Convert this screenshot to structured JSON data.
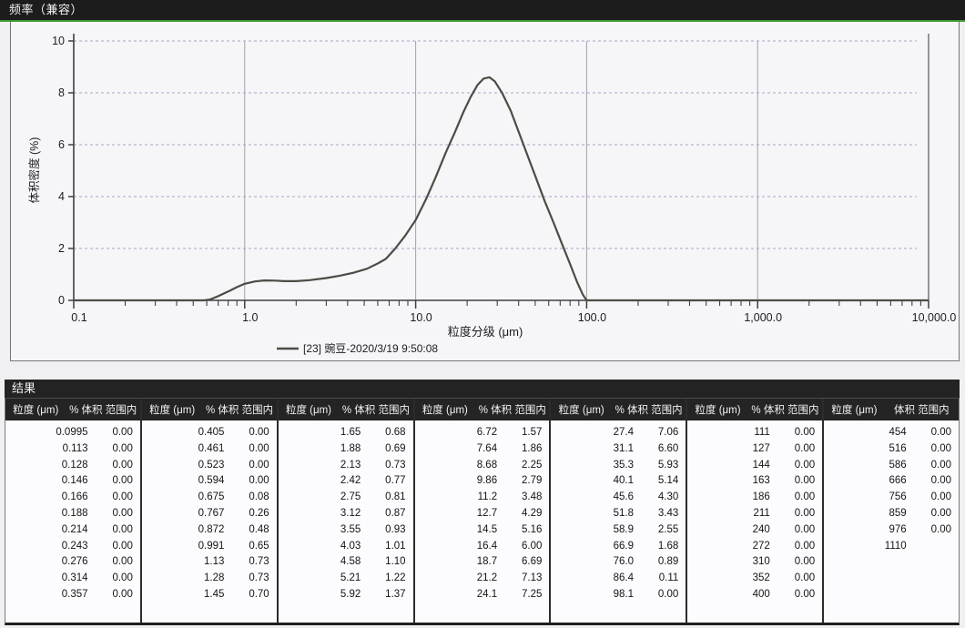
{
  "chart": {
    "title": "频率（兼容）"
  },
  "chart_data": {
    "type": "line",
    "title": "频率（兼容）",
    "xlabel": "粒度分级 (μm)",
    "ylabel": "体积密度 (%)",
    "x_scale": "log",
    "xlim": [
      0.1,
      10000
    ],
    "ylim": [
      0,
      10
    ],
    "x_ticks": [
      0.1,
      1,
      10,
      100,
      1000,
      10000
    ],
    "x_tick_labels": [
      "0.1",
      "1.0",
      "10.0",
      "100.0",
      "1,000.0",
      "10,000.0"
    ],
    "y_ticks": [
      0,
      2,
      4,
      6,
      8,
      10
    ],
    "grid": "on",
    "legend_position": "bottom-center",
    "series": [
      {
        "name": "[23] 豌豆-2020/3/19 9:50:08",
        "points": [
          [
            0.1,
            0
          ],
          [
            0.2,
            0
          ],
          [
            0.3,
            0
          ],
          [
            0.4,
            0
          ],
          [
            0.5,
            0
          ],
          [
            0.58,
            0
          ],
          [
            0.63,
            0.04
          ],
          [
            0.7,
            0.16
          ],
          [
            0.8,
            0.34
          ],
          [
            0.9,
            0.51
          ],
          [
            1.0,
            0.64
          ],
          [
            1.15,
            0.73
          ],
          [
            1.3,
            0.77
          ],
          [
            1.5,
            0.76
          ],
          [
            1.7,
            0.74
          ],
          [
            2.0,
            0.74
          ],
          [
            2.4,
            0.78
          ],
          [
            3.0,
            0.86
          ],
          [
            3.6,
            0.95
          ],
          [
            4.3,
            1.06
          ],
          [
            5.2,
            1.22
          ],
          [
            6.0,
            1.42
          ],
          [
            6.7,
            1.6
          ],
          [
            7.6,
            2.0
          ],
          [
            8.7,
            2.5
          ],
          [
            10.0,
            3.1
          ],
          [
            11.5,
            3.9
          ],
          [
            13,
            4.7
          ],
          [
            15,
            5.7
          ],
          [
            17,
            6.5
          ],
          [
            19,
            7.25
          ],
          [
            21,
            7.85
          ],
          [
            23,
            8.3
          ],
          [
            25,
            8.55
          ],
          [
            27,
            8.6
          ],
          [
            29,
            8.45
          ],
          [
            32,
            8.0
          ],
          [
            36,
            7.3
          ],
          [
            40,
            6.5
          ],
          [
            45,
            5.6
          ],
          [
            50,
            4.8
          ],
          [
            57,
            3.8
          ],
          [
            64,
            3.0
          ],
          [
            72,
            2.15
          ],
          [
            80,
            1.4
          ],
          [
            88,
            0.7
          ],
          [
            95,
            0.22
          ],
          [
            99,
            0.04
          ],
          [
            101,
            0
          ],
          [
            150,
            0
          ],
          [
            300,
            0
          ],
          [
            1000,
            0
          ],
          [
            3000,
            0
          ],
          [
            10000,
            0
          ]
        ]
      }
    ]
  },
  "results": {
    "title": "结果",
    "group_headers": [
      {
        "size": "粒度 (μm)",
        "pct": "% 体积 范围内"
      },
      {
        "size": "粒度 (μm)",
        "pct": "% 体积 范围内"
      },
      {
        "size": "粒度 (μm)",
        "pct": "% 体积 范围内"
      },
      {
        "size": "粒度 (μm)",
        "pct": "% 体积 范围内"
      },
      {
        "size": "粒度 (μm)",
        "pct": "% 体积 范围内"
      },
      {
        "size": "粒度 (μm)",
        "pct": "% 体积 范围内"
      },
      {
        "size": "粒度 (μm)",
        "pct": "体积 范围内"
      }
    ],
    "groups": [
      [
        [
          "0.0995",
          "0.00"
        ],
        [
          "0.113",
          "0.00"
        ],
        [
          "0.128",
          "0.00"
        ],
        [
          "0.146",
          "0.00"
        ],
        [
          "0.166",
          "0.00"
        ],
        [
          "0.188",
          "0.00"
        ],
        [
          "0.214",
          "0.00"
        ],
        [
          "0.243",
          "0.00"
        ],
        [
          "0.276",
          "0.00"
        ],
        [
          "0.314",
          "0.00"
        ],
        [
          "0.357",
          "0.00"
        ]
      ],
      [
        [
          "0.405",
          "0.00"
        ],
        [
          "0.461",
          "0.00"
        ],
        [
          "0.523",
          "0.00"
        ],
        [
          "0.594",
          "0.00"
        ],
        [
          "0.675",
          "0.08"
        ],
        [
          "0.767",
          "0.26"
        ],
        [
          "0.872",
          "0.48"
        ],
        [
          "0.991",
          "0.65"
        ],
        [
          "1.13",
          "0.73"
        ],
        [
          "1.28",
          "0.73"
        ],
        [
          "1.45",
          "0.70"
        ]
      ],
      [
        [
          "1.65",
          "0.68"
        ],
        [
          "1.88",
          "0.69"
        ],
        [
          "2.13",
          "0.73"
        ],
        [
          "2.42",
          "0.77"
        ],
        [
          "2.75",
          "0.81"
        ],
        [
          "3.12",
          "0.87"
        ],
        [
          "3.55",
          "0.93"
        ],
        [
          "4.03",
          "1.01"
        ],
        [
          "4.58",
          "1.10"
        ],
        [
          "5.21",
          "1.22"
        ],
        [
          "5.92",
          "1.37"
        ]
      ],
      [
        [
          "6.72",
          "1.57"
        ],
        [
          "7.64",
          "1.86"
        ],
        [
          "8.68",
          "2.25"
        ],
        [
          "9.86",
          "2.79"
        ],
        [
          "11.2",
          "3.48"
        ],
        [
          "12.7",
          "4.29"
        ],
        [
          "14.5",
          "5.16"
        ],
        [
          "16.4",
          "6.00"
        ],
        [
          "18.7",
          "6.69"
        ],
        [
          "21.2",
          "7.13"
        ],
        [
          "24.1",
          "7.25"
        ]
      ],
      [
        [
          "27.4",
          "7.06"
        ],
        [
          "31.1",
          "6.60"
        ],
        [
          "35.3",
          "5.93"
        ],
        [
          "40.1",
          "5.14"
        ],
        [
          "45.6",
          "4.30"
        ],
        [
          "51.8",
          "3.43"
        ],
        [
          "58.9",
          "2.55"
        ],
        [
          "66.9",
          "1.68"
        ],
        [
          "76.0",
          "0.89"
        ],
        [
          "86.4",
          "0.11"
        ],
        [
          "98.1",
          "0.00"
        ]
      ],
      [
        [
          "111",
          "0.00"
        ],
        [
          "127",
          "0.00"
        ],
        [
          "144",
          "0.00"
        ],
        [
          "163",
          "0.00"
        ],
        [
          "186",
          "0.00"
        ],
        [
          "211",
          "0.00"
        ],
        [
          "240",
          "0.00"
        ],
        [
          "272",
          "0.00"
        ],
        [
          "310",
          "0.00"
        ],
        [
          "352",
          "0.00"
        ],
        [
          "400",
          "0.00"
        ]
      ],
      [
        [
          "454",
          "0.00"
        ],
        [
          "516",
          "0.00"
        ],
        [
          "586",
          "0.00"
        ],
        [
          "666",
          "0.00"
        ],
        [
          "756",
          "0.00"
        ],
        [
          "859",
          "0.00"
        ],
        [
          "976",
          "0.00"
        ],
        [
          "1110",
          ""
        ]
      ]
    ]
  },
  "colors": {
    "titlebar_bg": "#1c1c1c",
    "titlebar_green_line": "#3e9b35",
    "curve": "#4a4d45",
    "h_grid": "#b49fc4",
    "v_grid": "#a79fad",
    "axis": "#403e44",
    "plot_bg": "#f6f5f8"
  }
}
